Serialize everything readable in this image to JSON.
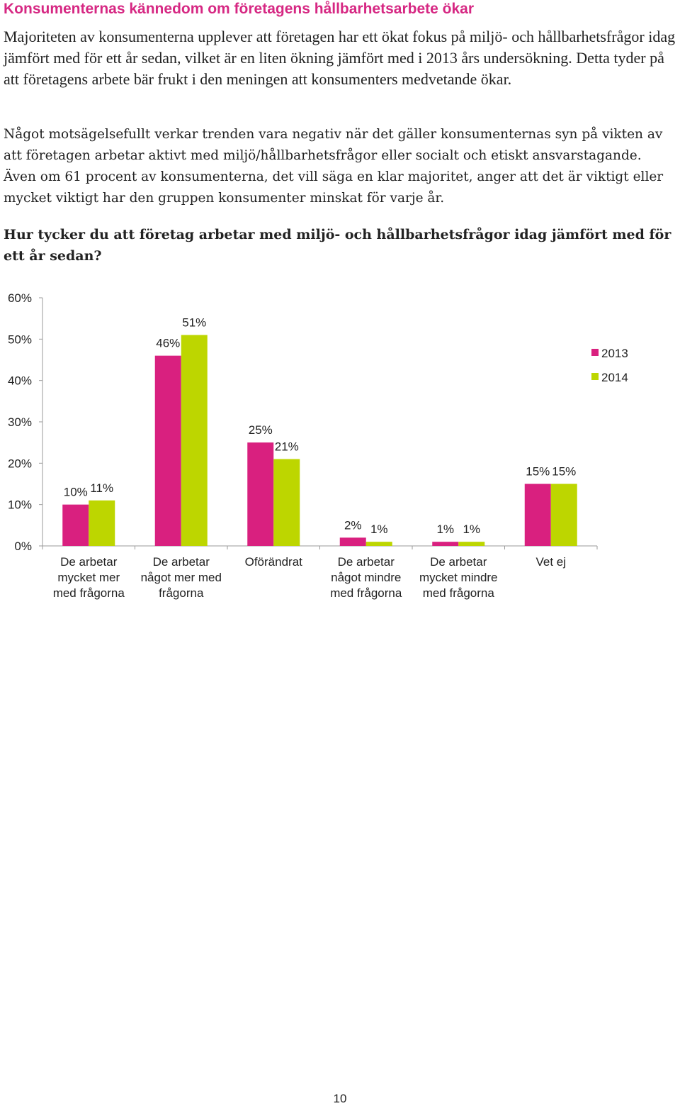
{
  "heading": "Konsumenternas kännedom om företagens hållbarhetsarbete ökar",
  "paragraphs": [
    "Majoriteten av konsumenterna upplever att företagen har ett ökat fokus på miljö- och håll­barhetsfrågor idag jämfört med för ett år sedan, vilket är en liten ökning jämfört med i 2013 års undersökning. Detta tyder på att företagens arbete bär frukt i den meningen att konsu­menters medvetande ökar.",
    "Något motsägelsefullt verkar trenden vara negativ när det gäller konsumenternas syn på vikten av att företagen arbetar aktivt med miljö/hållbarhetsfrågor eller socialt och etiskt ansvarstagande. Även om 61 procent av konsumenterna, det vill säga en klar majoritet, anger att det är viktigt eller mycket viktigt har den gruppen konsumenter minskat för varje år."
  ],
  "question": "Hur tycker du att företag arbetar med miljö- och hållbarhetsfrågor idag jämfört med för ett år sedan?",
  "chart_data": {
    "type": "bar",
    "categories": [
      [
        "De arbetar",
        "mycket mer",
        "med frågorna"
      ],
      [
        "De arbetar",
        "något mer med",
        "frågorna"
      ],
      [
        "Oförändrat"
      ],
      [
        "De arbetar",
        "något mindre",
        "med frågorna"
      ],
      [
        "De arbetar",
        "mycket mindre",
        "med frågorna"
      ],
      [
        "Vet ej"
      ]
    ],
    "series": [
      {
        "name": "2013",
        "values": [
          10,
          46,
          25,
          2,
          1,
          15
        ],
        "labels": [
          "10%",
          "46%",
          "25%",
          "2%",
          "1%",
          "15%"
        ],
        "color": "#d9207f"
      },
      {
        "name": "2014",
        "values": [
          11,
          51,
          21,
          1,
          1,
          15
        ],
        "labels": [
          "11%",
          "51%",
          "21%",
          "1%",
          "1%",
          "15%"
        ],
        "color": "#bdd600"
      }
    ],
    "ylim": [
      0,
      60
    ],
    "yticks": [
      "0%",
      "10%",
      "20%",
      "30%",
      "40%",
      "50%",
      "60%"
    ],
    "legend_position": "top-right",
    "grid": false
  },
  "page_number": "10"
}
